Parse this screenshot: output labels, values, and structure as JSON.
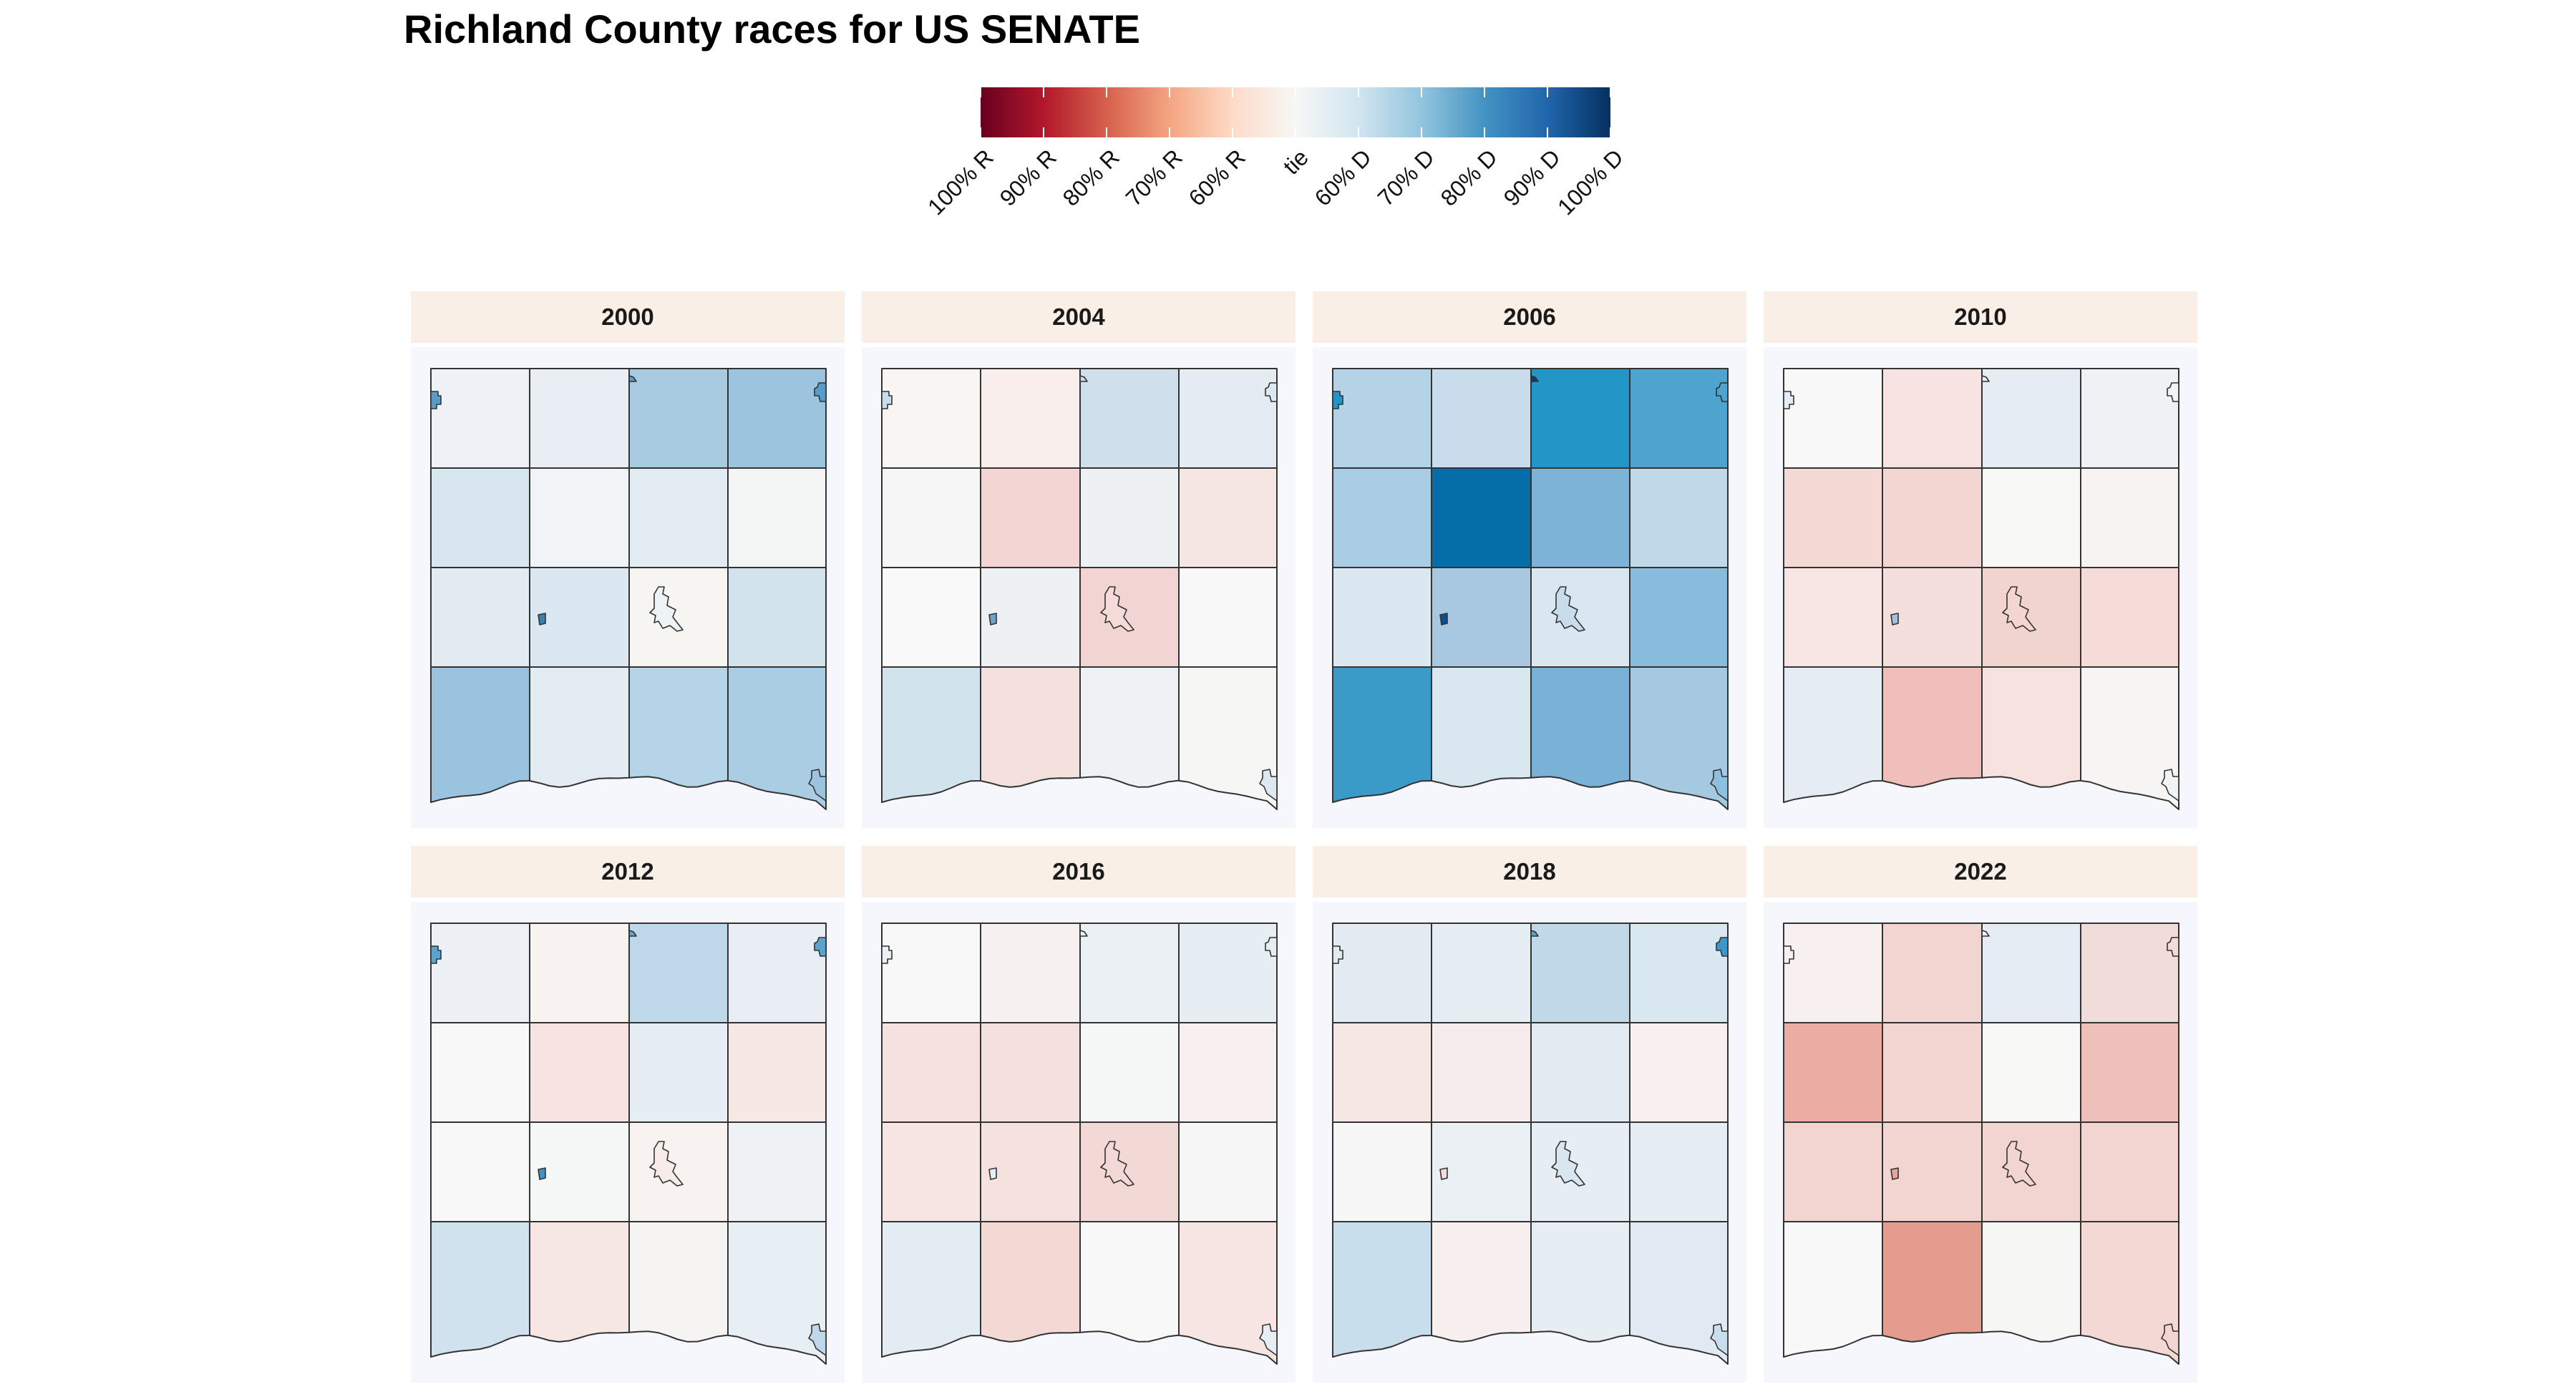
{
  "title": "Richland County races for US SENATE",
  "legend": {
    "colors": [
      "#67001f",
      "#b2182b",
      "#d6604d",
      "#f4a582",
      "#fddbc7",
      "#f7f7f7",
      "#d1e5f0",
      "#92c5de",
      "#4393c3",
      "#2166ac",
      "#053061"
    ],
    "labels": [
      "100% R",
      "90% R",
      "80% R",
      "70% R",
      "60% R",
      "tie",
      "60% D",
      "70% D",
      "80% D",
      "90% D",
      "100% D"
    ]
  },
  "palette": {
    "panel_strip": "#faefe7",
    "panel_background": "#f6f7fc",
    "border": "#333333"
  },
  "panels": [
    {
      "year": "2000",
      "cells": [
        "#eef2f6",
        "#e8eef4",
        "#a9cbe2",
        "#9cc4de",
        "#d8e6f0",
        "#f1f4f7",
        "#e3ebf3",
        "#f4f6f6",
        "#e2ebf2",
        "#dce8f1",
        "#f7f5f2",
        "#d3e3ee",
        "#99c3df",
        "#e3ebf3",
        "#b6d4e8",
        "#abcde4"
      ],
      "insets": [
        "#5a9cc7",
        "#5a9cc7",
        "#5a9cc7",
        "#3c7fad",
        "#eef3f6",
        "#9cc4de"
      ]
    },
    {
      "year": "2004",
      "cells": [
        "#f8f5f3",
        "#f9eeec",
        "#cfdfec",
        "#e4ebf2",
        "#f6f6f6",
        "#f3d6d3",
        "#edf1f4",
        "#f6e6e3",
        "#f9f9f9",
        "#edf1f4",
        "#f2d5d2",
        "#f8f8f8",
        "#d1e3ed",
        "#f4e0dd",
        "#eef2f4",
        "#f6f7f5"
      ],
      "insets": [
        "#cadcea",
        "#cadcea",
        "#dde8f1",
        "#6ea4cc",
        "#f6dcd8",
        "#dde8f1"
      ]
    },
    {
      "year": "2006",
      "cells": [
        "#b5d3e6",
        "#c8dcec",
        "#2297c7",
        "#4ea3cf",
        "#a9cde4",
        "#056ea9",
        "#7cb3d6",
        "#bfd9e9",
        "#dce8f1",
        "#a7c8e0",
        "#dbe7f0",
        "#88bbdc",
        "#3a9bc9",
        "#d9e7f0",
        "#79b2d6",
        "#a4c9e1"
      ],
      "insets": [
        "#2297c7",
        "#0c3f73",
        "#4ea3cf",
        "#0c4f8a",
        "#c8dcec",
        "#8dbfde"
      ]
    },
    {
      "year": "2010",
      "cells": [
        "#f8f8f8",
        "#f7e4e2",
        "#e5ecf3",
        "#eef2f5",
        "#f4d9d5",
        "#f3d5d1",
        "#f8f8f6",
        "#f7f3f2",
        "#f7e6e3",
        "#f5dfdc",
        "#f2d4cf",
        "#f6dcd8",
        "#e5ecf3",
        "#f0bfb9",
        "#f6e2df",
        "#f6f5f3"
      ],
      "insets": [
        "#e3ebf3",
        "#e3ebf3",
        "#f1f4f7",
        "#9fc2de",
        "#f4d5d0",
        "#f1f4f7"
      ]
    },
    {
      "year": "2012",
      "cells": [
        "#edf1f5",
        "#f8f2f1",
        "#bfd8e9",
        "#e8eef4",
        "#f8f8f8",
        "#f7e4e2",
        "#e6edf3",
        "#f7e7e5",
        "#f8f8f8",
        "#f6f8f8",
        "#f8f2f1",
        "#eef2f5",
        "#d0e2ed",
        "#f7e7e4",
        "#f6f4f3",
        "#e7eef4"
      ],
      "insets": [
        "#5aa4cf",
        "#5aa4cf",
        "#5aa4cf",
        "#4490c0",
        "#f8ece9",
        "#bfd8e9"
      ]
    },
    {
      "year": "2016",
      "cells": [
        "#f8f8f8",
        "#f6f1f0",
        "#eaf0f4",
        "#e7eef3",
        "#f5e1de",
        "#f4e1de",
        "#f6f7f7",
        "#f8f0ee",
        "#f6e5e2",
        "#f5e1de",
        "#f3d9d5",
        "#f7f7f7",
        "#e4ecf3",
        "#f3d8d4",
        "#f8f8f8",
        "#f6e5e2"
      ],
      "insets": [
        "#eaf0f4",
        "#eaf0f4",
        "#e7eef3",
        "#e6eef3",
        "#f3d9d5",
        "#e7eef3"
      ]
    },
    {
      "year": "2018",
      "cells": [
        "#e2ebf2",
        "#e6edf3",
        "#c0d9e9",
        "#d9e7f0",
        "#f6e6e4",
        "#f6eceb",
        "#e3ebf2",
        "#f8f0ef",
        "#f7f7f7",
        "#eaf0f4",
        "#e6edf3",
        "#e6edf3",
        "#c8deed",
        "#f6efee",
        "#e6edf3",
        "#e1eaf2"
      ],
      "insets": [
        "#e2ebf2",
        "#5aa4cf",
        "#3d97c9",
        "#f0dcd8",
        "#d8e6f0",
        "#c8deed"
      ]
    },
    {
      "year": "2022",
      "cells": [
        "#f8f0ef",
        "#f2d4d0",
        "#e5ecf3",
        "#f2dcda",
        "#ebada3",
        "#f3d6d2",
        "#f8f8f7",
        "#efc0b9",
        "#f2d5d0",
        "#f2d5d0",
        "#f2d4d0",
        "#f2d5d0",
        "#f8f8f8",
        "#e49c8f",
        "#f6f6f5",
        "#f3d8d4"
      ],
      "insets": [
        "#f8f0ef",
        "#f8f0ef",
        "#f2dcda",
        "#e9a39a",
        "#f2d4d0",
        "#f2d5d0"
      ]
    }
  ]
}
